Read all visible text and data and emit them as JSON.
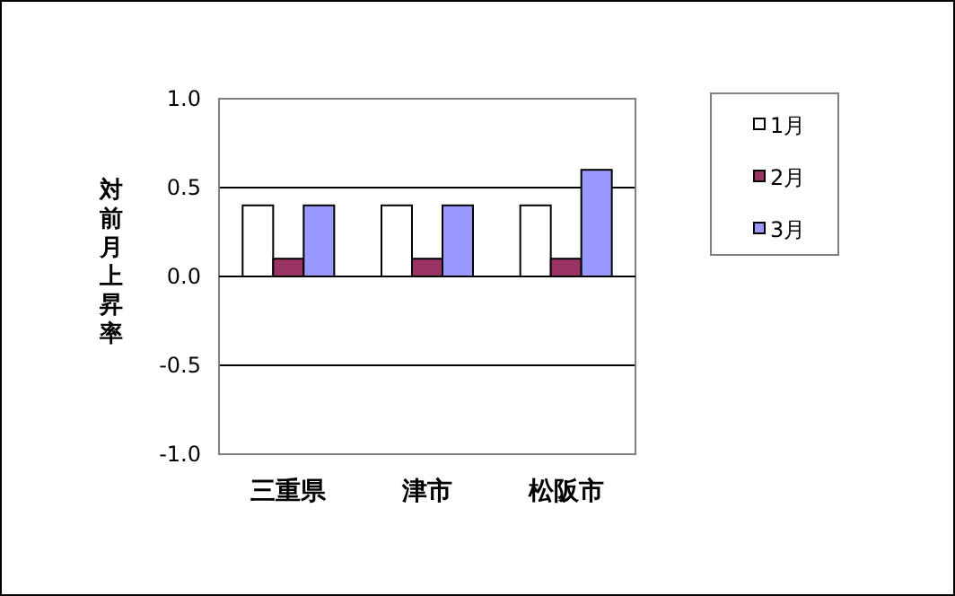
{
  "chart_data": {
    "type": "bar",
    "ylabel": "対前月上昇率",
    "categories": [
      "三重県",
      "津市",
      "松阪市"
    ],
    "series": [
      {
        "name": "1月",
        "color": "#ffffff",
        "values": [
          0.4,
          0.4,
          0.4
        ]
      },
      {
        "name": "2月",
        "color": "#993366",
        "values": [
          0.1,
          0.1,
          0.1
        ]
      },
      {
        "name": "3月",
        "color": "#9999ff",
        "values": [
          0.4,
          0.4,
          0.6
        ]
      }
    ],
    "ylim": [
      -1,
      1
    ],
    "yticks": [
      {
        "value": -1,
        "label": "-1.0"
      },
      {
        "value": -0.5,
        "label": "-0.5"
      },
      {
        "value": 0,
        "label": "0.0"
      },
      {
        "value": 0.5,
        "label": "0.5"
      },
      {
        "value": 1,
        "label": "1.0"
      }
    ],
    "grid": "y",
    "legend": "right"
  }
}
